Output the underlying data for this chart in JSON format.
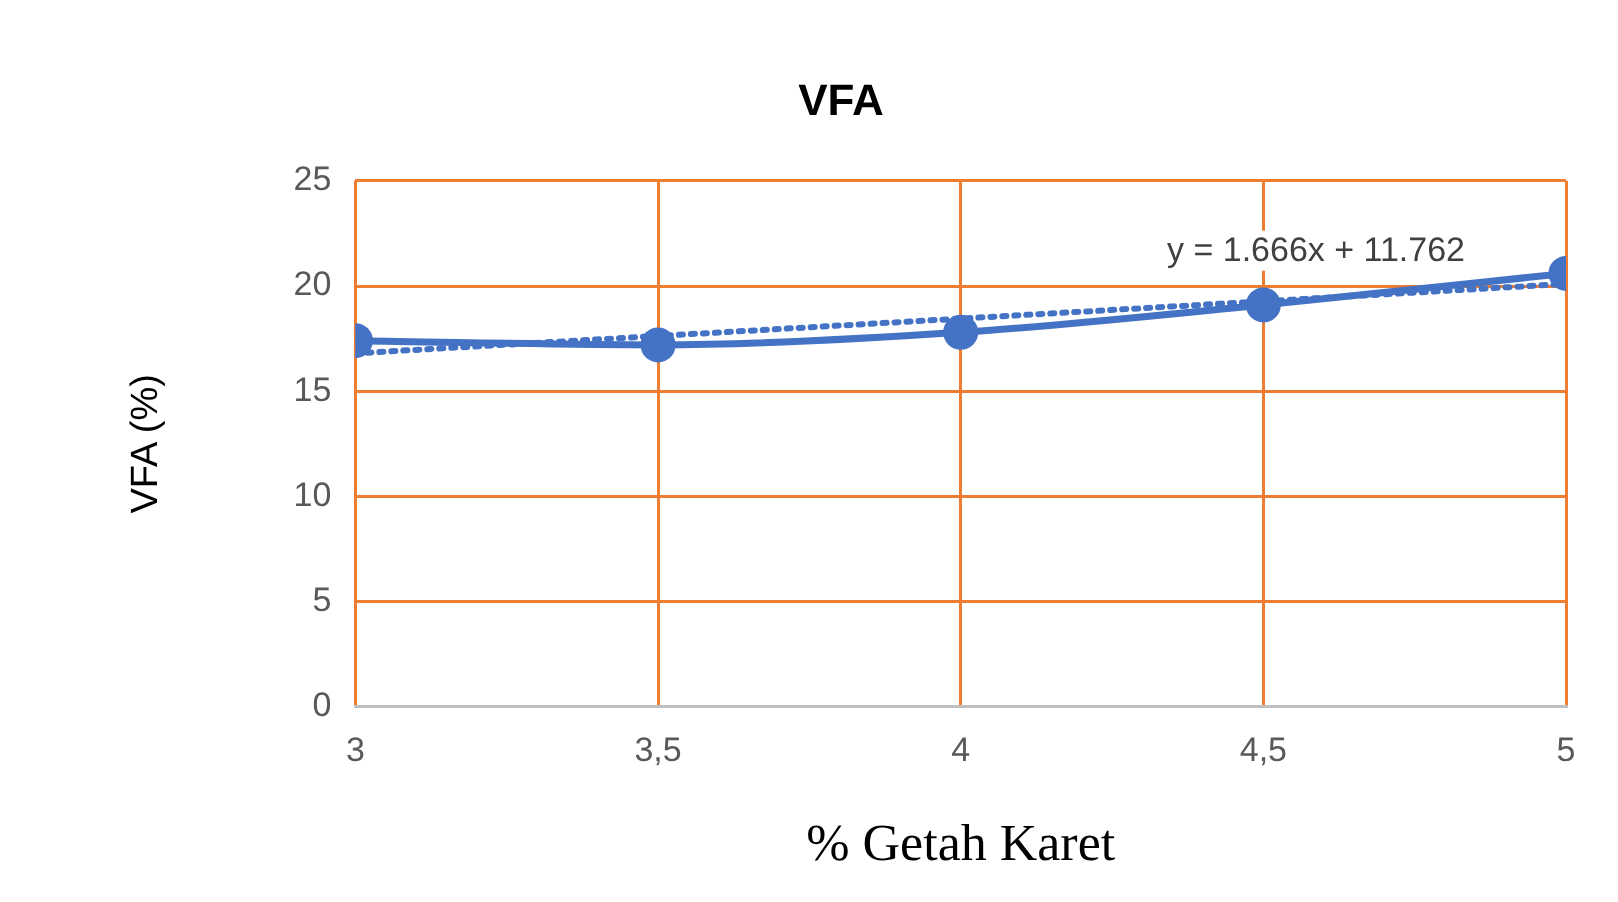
{
  "chart_data": {
    "type": "line",
    "title": "VFA",
    "xlabel": "% Getah Karet",
    "ylabel": "VFA (%)",
    "xlim": [
      3,
      5
    ],
    "xticks": [
      3,
      {
        "value": 3.5,
        "label": "3,5"
      },
      4,
      {
        "value": 4.5,
        "label": "4,5"
      },
      5
    ],
    "ylim": [
      0,
      25
    ],
    "yticks": [
      0,
      5,
      10,
      15,
      20,
      25
    ],
    "grid": true,
    "legend": false,
    "marker": "circle",
    "line_style": "solid",
    "series": [
      {
        "color": "#4472c4",
        "x": [
          3,
          3.5,
          4,
          4.5,
          5
        ],
        "values": [
          17.4,
          17.2,
          17.8,
          19.1,
          20.6
        ]
      },
      {
        "color": "#4472c4",
        "x": [
          3,
          5
        ],
        "values": [
          16.8,
          20.1
        ],
        "line_style": "dotted",
        "marker": "none"
      }
    ],
    "annotations": [
      "y = 1.666x + 11.762"
    ]
  }
}
